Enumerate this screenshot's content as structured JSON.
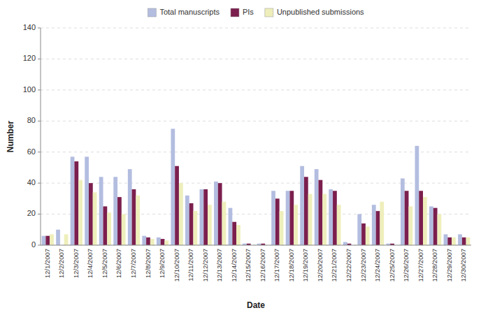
{
  "chart_data": {
    "type": "bar",
    "xlabel": "Date",
    "ylabel": "Number",
    "categories": [
      "12/1/2007",
      "12/2/2007",
      "12/3/2007",
      "12/4/2007",
      "12/5/2007",
      "12/6/2007",
      "12/7/2007",
      "12/8/2007",
      "12/9/2007",
      "12/10/2007",
      "12/11/2007",
      "12/12/2007",
      "12/13/2007",
      "12/14/2007",
      "12/15/2007",
      "12/16/2007",
      "12/17/2007",
      "12/18/2007",
      "12/19/2007",
      "12/20/2007",
      "12/21/2007",
      "12/22/2007",
      "12/23/2007",
      "12/24/2007",
      "12/25/2007",
      "12/26/2007",
      "12/27/2007",
      "12/28/2007",
      "12/29/2007",
      "12/30/2007"
    ],
    "series": [
      {
        "name": "Total manuscripts",
        "color": "#b3bde0",
        "values": [
          6,
          10,
          57,
          57,
          44,
          44,
          49,
          6,
          5,
          75,
          32,
          36,
          41,
          24,
          1,
          1,
          35,
          35,
          51,
          49,
          36,
          2,
          20,
          26,
          1,
          43,
          64,
          25,
          7,
          7
        ]
      },
      {
        "name": "PIs",
        "color": "#7b1f4e",
        "values": [
          6,
          0,
          54,
          40,
          25,
          31,
          36,
          5,
          4,
          51,
          27,
          36,
          40,
          15,
          1,
          1,
          30,
          35,
          44,
          42,
          35,
          1,
          14,
          22,
          1,
          35,
          35,
          24,
          5,
          5
        ]
      },
      {
        "name": "Unpublished submissions",
        "color": "#eeeebb",
        "values": [
          7,
          7,
          42,
          34,
          21,
          20,
          32,
          4,
          3,
          40,
          22,
          26,
          28,
          13,
          0,
          0,
          22,
          26,
          33,
          33,
          26,
          0,
          12,
          28,
          0,
          25,
          31,
          20,
          5,
          5
        ]
      }
    ],
    "ylim": [
      0,
      140
    ],
    "yticks": [
      0,
      20,
      40,
      60,
      80,
      100,
      120,
      140
    ],
    "grid": true,
    "legend": "top"
  }
}
